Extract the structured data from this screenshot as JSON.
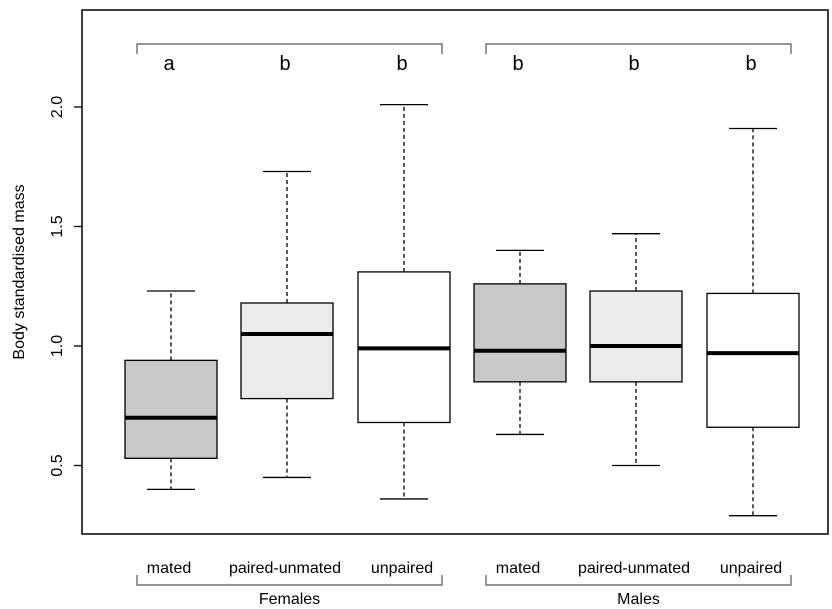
{
  "chart_data": {
    "type": "boxplot",
    "title": "",
    "xlabel": "",
    "ylabel": "Body standardised mass",
    "ylim": [
      0.22,
      2.4
    ],
    "yticks": [
      0.5,
      1.0,
      1.5,
      2.0
    ],
    "ytick_labels": [
      "0.5",
      "1.0",
      "1.5",
      "2.0"
    ],
    "groups": [
      {
        "name": "Females",
        "categories": [
          0,
          1,
          2
        ]
      },
      {
        "name": "Males",
        "categories": [
          3,
          4,
          5
        ]
      }
    ],
    "categories": [
      "mated",
      "paired-unmated",
      "unpaired",
      "mated",
      "paired-unmated",
      "unpaired"
    ],
    "boxes": [
      {
        "whisker_low": 0.4,
        "q1": 0.53,
        "median": 0.7,
        "q3": 0.94,
        "whisker_high": 1.23,
        "fill": "#c8c8c8"
      },
      {
        "whisker_low": 0.45,
        "q1": 0.78,
        "median": 1.05,
        "q3": 1.18,
        "whisker_high": 1.73,
        "fill": "#ebebeb"
      },
      {
        "whisker_low": 0.36,
        "q1": 0.68,
        "median": 0.99,
        "q3": 1.31,
        "whisker_high": 2.01,
        "fill": "#ffffff"
      },
      {
        "whisker_low": 0.63,
        "q1": 0.85,
        "median": 0.98,
        "q3": 1.26,
        "whisker_high": 1.4,
        "fill": "#c8c8c8"
      },
      {
        "whisker_low": 0.5,
        "q1": 0.85,
        "median": 1.0,
        "q3": 1.23,
        "whisker_high": 1.47,
        "fill": "#ebebeb"
      },
      {
        "whisker_low": 0.29,
        "q1": 0.66,
        "median": 0.97,
        "q3": 1.22,
        "whisker_high": 1.91,
        "fill": "#ffffff"
      }
    ],
    "significance_letters": [
      "a",
      "b",
      "b",
      "b",
      "b",
      "b"
    ],
    "grid": false,
    "legend": "none"
  }
}
